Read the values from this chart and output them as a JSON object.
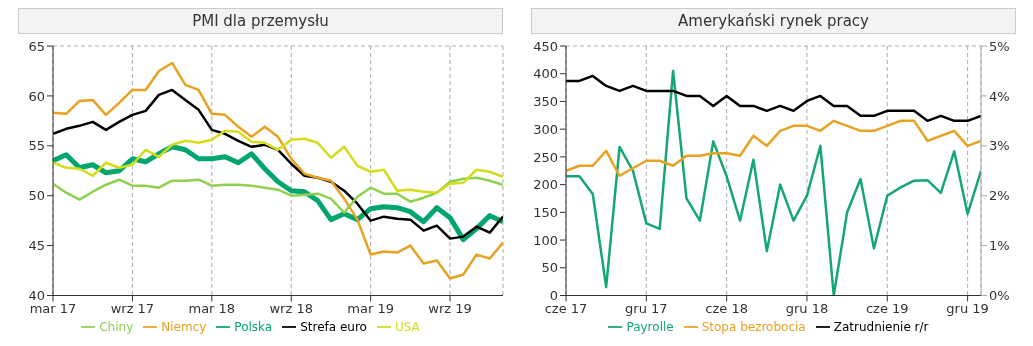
{
  "chart_data": [
    {
      "type": "line",
      "title": "PMI dla przemysłu",
      "categories": [
        "mar 17",
        null,
        null,
        null,
        null,
        null,
        "wrz 17",
        null,
        null,
        null,
        null,
        null,
        "mar 18",
        null,
        null,
        null,
        null,
        null,
        "wrz 18",
        null,
        null,
        null,
        null,
        null,
        "mar 19",
        null,
        null,
        null,
        null,
        null,
        "wrz 19",
        null,
        null,
        null,
        null
      ],
      "ylim": [
        40,
        65
      ],
      "yticks": [
        40,
        45,
        50,
        55,
        60,
        65
      ],
      "grid": true,
      "legend": "bottom",
      "series": [
        {
          "name": "Polska",
          "color": "#00a66e",
          "values": [
            53.5,
            54.1,
            52.8,
            53.1,
            52.3,
            52.5,
            53.7,
            53.4,
            54.2,
            54.9,
            54.6,
            53.7,
            53.7,
            53.9,
            53.3,
            54.2,
            52.7,
            51.4,
            50.5,
            50.4,
            49.5,
            47.6,
            48.2,
            47.6,
            48.7,
            48.9,
            48.8,
            48.4,
            47.4,
            48.8,
            47.8,
            45.6,
            46.7,
            48.0,
            47.4
          ]
        },
        {
          "name": "Strefa euro",
          "color": "#000000",
          "values": [
            56.2,
            56.7,
            57.0,
            57.4,
            56.6,
            57.4,
            58.1,
            58.5,
            60.1,
            60.6,
            59.6,
            58.6,
            56.6,
            56.2,
            55.5,
            54.9,
            55.1,
            54.6,
            53.2,
            52.0,
            51.8,
            51.4,
            50.5,
            49.2,
            47.5,
            47.9,
            47.7,
            47.6,
            46.5,
            47.0,
            45.7,
            45.9,
            46.9,
            46.3,
            47.9
          ]
        },
        {
          "name": "Niemcy",
          "color": "#e8a21f",
          "values": [
            58.3,
            58.2,
            59.5,
            59.6,
            58.1,
            59.3,
            60.6,
            60.6,
            62.5,
            63.3,
            61.1,
            60.6,
            58.2,
            58.1,
            56.9,
            55.9,
            56.9,
            55.9,
            53.7,
            52.2,
            51.8,
            51.5,
            49.7,
            47.6,
            44.1,
            44.4,
            44.3,
            45.0,
            43.2,
            43.5,
            41.7,
            42.1,
            44.1,
            43.7,
            45.3
          ]
        },
        {
          "name": "Chiny",
          "color": "#8fd14f",
          "values": [
            51.2,
            50.3,
            49.6,
            50.4,
            51.1,
            51.6,
            51.0,
            51.0,
            50.8,
            51.5,
            51.5,
            51.6,
            51.0,
            51.1,
            51.1,
            51.0,
            50.8,
            50.6,
            50.0,
            50.1,
            50.2,
            49.7,
            48.3,
            49.9,
            50.8,
            50.2,
            50.2,
            49.4,
            49.8,
            50.3,
            51.4,
            51.7,
            51.8,
            51.5,
            51.1
          ]
        },
        {
          "name": "USA",
          "color": "#d4dc1c",
          "values": [
            53.3,
            52.8,
            52.7,
            52.0,
            53.3,
            52.8,
            53.1,
            54.6,
            53.9,
            55.1,
            55.5,
            55.3,
            55.6,
            56.5,
            56.4,
            55.4,
            55.3,
            54.6,
            55.6,
            55.7,
            55.3,
            53.8,
            54.9,
            53.0,
            52.4,
            52.6,
            50.5,
            50.6,
            50.4,
            50.3,
            51.2,
            51.3,
            52.6,
            52.4,
            51.9
          ]
        }
      ]
    },
    {
      "type": "line",
      "title": "Amerykański rynek pracy",
      "categories": [
        "cze 17",
        null,
        null,
        null,
        null,
        null,
        "gru 17",
        null,
        null,
        null,
        null,
        null,
        "cze 18",
        null,
        null,
        null,
        null,
        null,
        "gru 18",
        null,
        null,
        null,
        null,
        null,
        "cze 19",
        null,
        null,
        null,
        null,
        null,
        "gru 19",
        null
      ],
      "ylim": [
        0,
        450
      ],
      "yticks": [
        0,
        50,
        100,
        150,
        200,
        250,
        300,
        350,
        400,
        450
      ],
      "y2lim": [
        0,
        5
      ],
      "y2ticks": [
        {
          "value": 0,
          "label": "0%"
        },
        {
          "value": 1,
          "label": "1%"
        },
        {
          "value": 2,
          "label": "2%"
        },
        {
          "value": 3,
          "label": "3%"
        },
        {
          "value": 4,
          "label": "4%"
        },
        {
          "value": 5,
          "label": "5%"
        }
      ],
      "grid": true,
      "legend": "bottom",
      "series": [
        {
          "name": "Payrolle",
          "color": "#14a774",
          "values": [
            215,
            215,
            183,
            15,
            268,
            225,
            130,
            120,
            405,
            175,
            135,
            278,
            215,
            135,
            245,
            80,
            200,
            135,
            180,
            270,
            0,
            150,
            210,
            85,
            180,
            195,
            207,
            208,
            185,
            260,
            147,
            225
          ]
        },
        {
          "name": "Zatrudnienie r/r",
          "color": "#000000",
          "axis": "y2",
          "values": [
            4.3,
            4.3,
            4.4,
            4.2,
            4.1,
            4.2,
            4.1,
            4.1,
            4.1,
            4.0,
            4.0,
            3.8,
            4.0,
            3.8,
            3.8,
            3.7,
            3.8,
            3.7,
            3.9,
            4.0,
            3.8,
            3.8,
            3.6,
            3.6,
            3.7,
            3.7,
            3.7,
            3.5,
            3.6,
            3.5,
            3.5,
            3.6
          ]
        },
        {
          "name": "Stopa bezrobocia",
          "color": "#e8a21f",
          "axis": "y2",
          "values": [
            2.5,
            2.6,
            2.6,
            2.9,
            2.4,
            2.55,
            2.7,
            2.7,
            2.6,
            2.8,
            2.8,
            2.85,
            2.85,
            2.8,
            3.2,
            3.0,
            3.3,
            3.4,
            3.4,
            3.3,
            3.5,
            3.4,
            3.3,
            3.3,
            3.4,
            3.5,
            3.5,
            3.1,
            3.2,
            3.3,
            3.0,
            3.1
          ]
        }
      ]
    }
  ]
}
